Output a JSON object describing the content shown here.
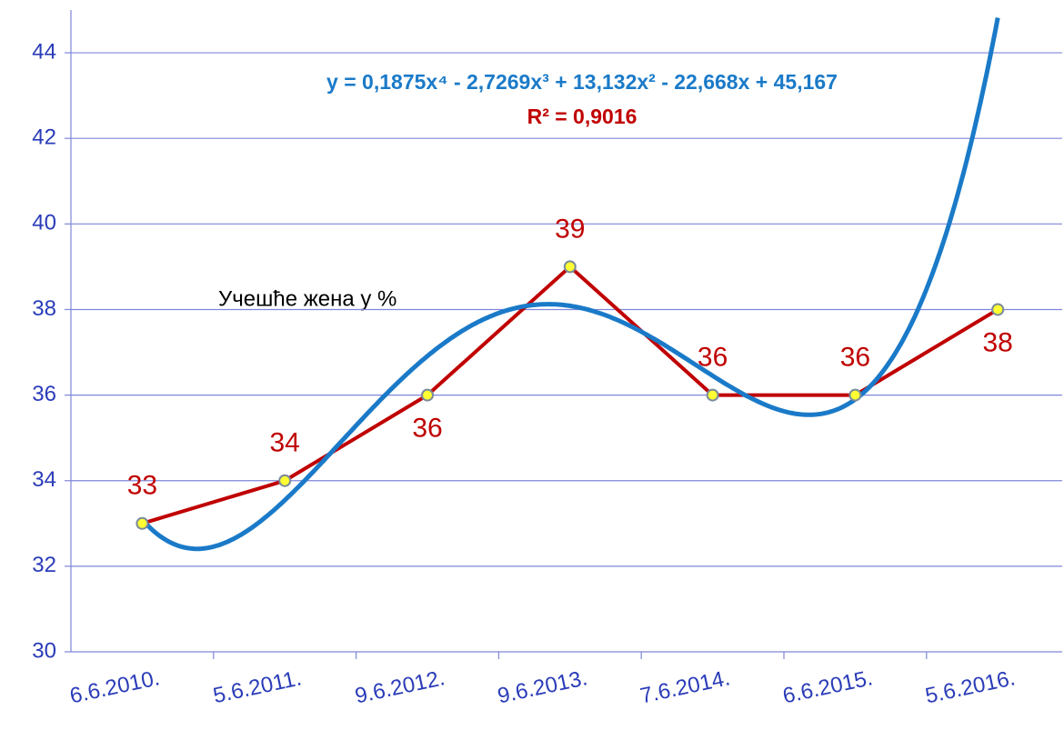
{
  "chart_data": {
    "type": "line",
    "categories": [
      "6.6.2010.",
      "5.6.2011.",
      "9.6.2012.",
      "9.6.2013.",
      "7.6.2014.",
      "6.6.2015.",
      "5.6.2016."
    ],
    "series": [
      {
        "name": "Учешће жена у %",
        "color": "#c00000",
        "values": [
          33,
          34,
          36,
          39,
          36,
          36,
          38
        ]
      }
    ],
    "ylim": [
      30,
      45
    ],
    "yticks": [
      30,
      32,
      34,
      36,
      38,
      40,
      42,
      44
    ],
    "grid": true,
    "trendline": {
      "type": "polynomial",
      "color": "#1a7ac8",
      "equation": "y = 0,1875x⁴ - 2,7269x³ + 13,132x² - 22,668x + 45,167",
      "r2_label": "R² = 0,9016",
      "coefficients": [
        0.1875,
        -2.7269,
        13.132,
        -22.668,
        45.167
      ]
    }
  }
}
